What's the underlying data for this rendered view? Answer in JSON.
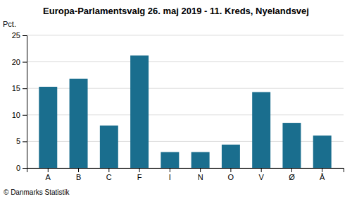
{
  "chart_data": {
    "type": "bar",
    "title": "Europa-Parlamentsvalg 26. maj 2019 - 11. Kreds, Nyelandsvej",
    "ylabel": "Pct.",
    "footer": "© Danmarks Statistik",
    "categories": [
      "A",
      "B",
      "C",
      "F",
      "I",
      "N",
      "O",
      "V",
      "Ø",
      "Å"
    ],
    "values": [
      15.3,
      16.8,
      8.0,
      21.2,
      3.0,
      3.0,
      4.4,
      14.3,
      8.5,
      6.1
    ],
    "color": "#1a6e8e",
    "ylim": [
      0,
      25
    ],
    "yticks": [
      0,
      5,
      10,
      15,
      20,
      25
    ],
    "grid": true
  }
}
